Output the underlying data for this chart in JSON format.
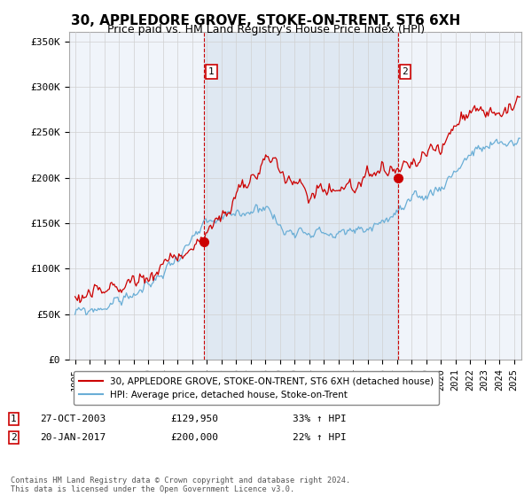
{
  "title": "30, APPLEDORE GROVE, STOKE-ON-TRENT, ST6 6XH",
  "subtitle": "Price paid vs. HM Land Registry's House Price Index (HPI)",
  "ylabel_ticks": [
    "£0",
    "£50K",
    "£100K",
    "£150K",
    "£200K",
    "£250K",
    "£300K",
    "£350K"
  ],
  "ytick_values": [
    0,
    50000,
    100000,
    150000,
    200000,
    250000,
    300000,
    350000
  ],
  "ylim": [
    0,
    360000
  ],
  "xlim_start": 1994.6,
  "xlim_end": 2025.5,
  "xtick_years": [
    1995,
    1996,
    1997,
    1998,
    1999,
    2000,
    2001,
    2002,
    2003,
    2004,
    2005,
    2006,
    2007,
    2008,
    2009,
    2010,
    2011,
    2012,
    2013,
    2014,
    2015,
    2016,
    2017,
    2018,
    2019,
    2020,
    2021,
    2022,
    2023,
    2024,
    2025
  ],
  "sale1_x": 2003.82,
  "sale1_y": 129950,
  "sale1_label": "1",
  "sale1_date": "27-OCT-2003",
  "sale1_price": "£129,950",
  "sale1_hpi": "33% ↑ HPI",
  "sale2_x": 2017.05,
  "sale2_y": 200000,
  "sale2_label": "2",
  "sale2_date": "20-JAN-2017",
  "sale2_price": "£200,000",
  "sale2_hpi": "22% ↑ HPI",
  "red_line_color": "#cc0000",
  "blue_line_color": "#6aaed6",
  "shade_color": "#dce6f1",
  "marker_color": "#cc0000",
  "vline_color": "#cc0000",
  "grid_color": "#d0d0d0",
  "bg_color": "#ffffff",
  "plot_bg_color": "#f0f4fa",
  "legend_line1": "30, APPLEDORE GROVE, STOKE-ON-TRENT, ST6 6XH (detached house)",
  "legend_line2": "HPI: Average price, detached house, Stoke-on-Trent",
  "footer": "Contains HM Land Registry data © Crown copyright and database right 2024.\nThis data is licensed under the Open Government Licence v3.0.",
  "title_fontsize": 11,
  "subtitle_fontsize": 9
}
